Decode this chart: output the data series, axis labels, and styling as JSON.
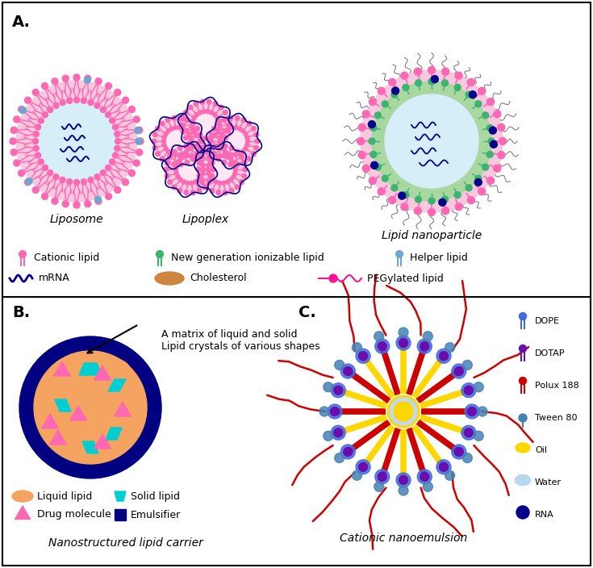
{
  "bg_color": "#FFFFFF",
  "pink": "#FF69B4",
  "hot_pink": "#FF1493",
  "dark_blue": "#00008B",
  "navy": "#000080",
  "green": "#3CB371",
  "light_green": "#90EE90",
  "cyan": "#00CED1",
  "light_blue_inner": "#D6EEF8",
  "light_blue2": "#B8D8F0",
  "orange_tan": "#F4A460",
  "golden": "#DAA520",
  "red": "#CC0000",
  "yellow": "#FFD700",
  "blue_royal": "#4169E1",
  "purple": "#6A0DAD",
  "steel_blue": "#4682B4",
  "light_gray": "#D3D3D3",
  "panel_A_label": "A.",
  "panel_B_label": "B.",
  "panel_C_label": "C.",
  "liposome_label": "Liposome",
  "lipoplex_label": "Lipoplex",
  "lipid_nanoparticle_label": "Lipid nanoparticle",
  "nanostructured_label": "Nanostructured lipid carrier",
  "nanoemulsion_label": "Cationic nanoemulsion",
  "annotation_text": "A matrix of liquid and solid\nLipid crystals of various shapes",
  "legend_C_labels": [
    "DOPE",
    "DOTAP",
    "Polux 188",
    "Tween 80",
    "Oil",
    "Water",
    "RNA"
  ],
  "legend_C_colors": [
    "#4169E1",
    "#6A0DAD",
    "#CC0000",
    "#4682B4",
    "#FFD700",
    "#B8D8F0",
    "#00008B"
  ]
}
